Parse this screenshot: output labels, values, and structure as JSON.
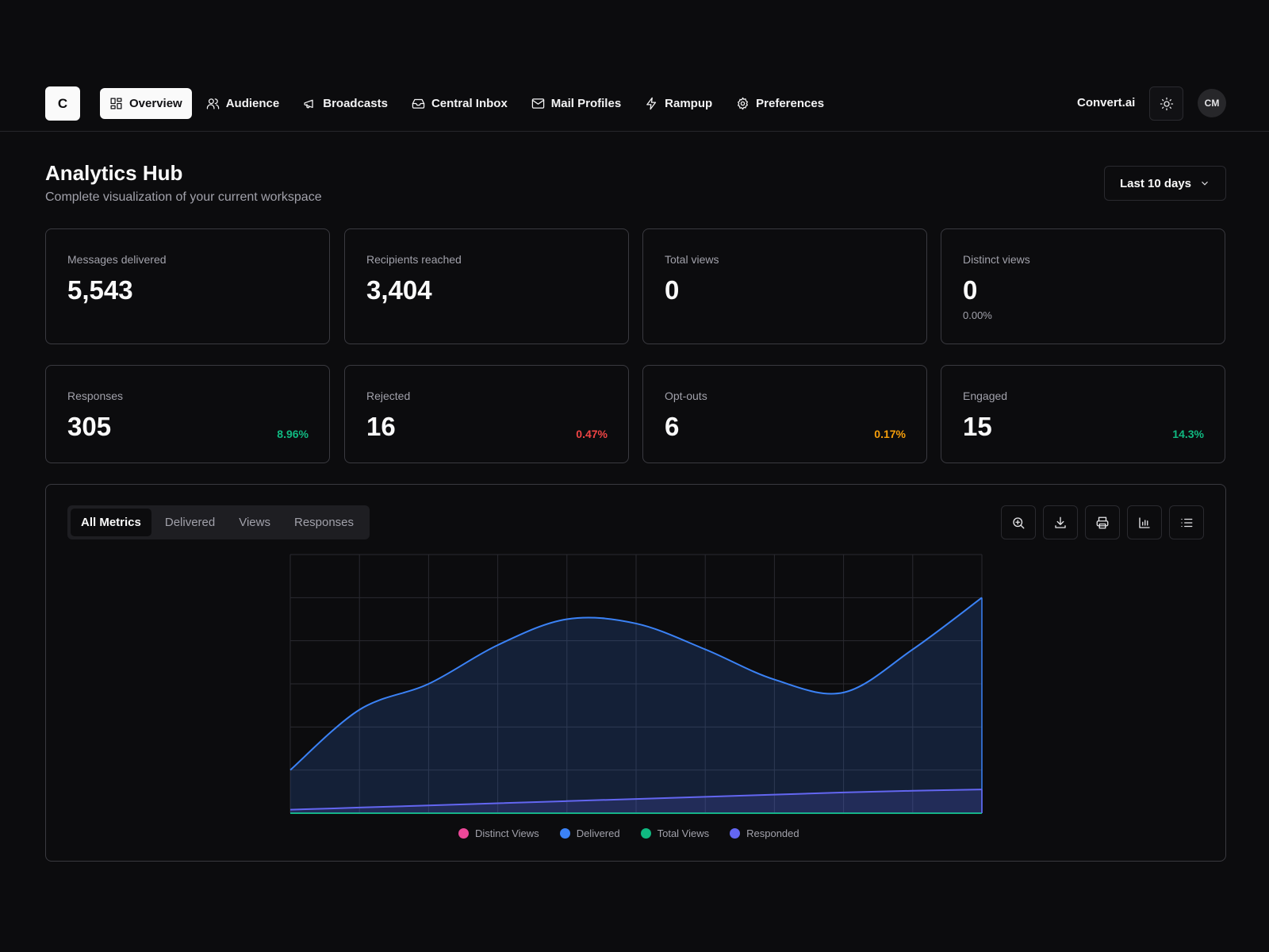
{
  "logo": {
    "letter": "C"
  },
  "nav": {
    "items": [
      {
        "label": "Overview",
        "icon": "grid-icon",
        "active": true
      },
      {
        "label": "Audience",
        "icon": "users-icon",
        "active": false
      },
      {
        "label": "Broadcasts",
        "icon": "megaphone-icon",
        "active": false
      },
      {
        "label": "Central Inbox",
        "icon": "inbox-icon",
        "active": false
      },
      {
        "label": "Mail Profiles",
        "icon": "mail-icon",
        "active": false
      },
      {
        "label": "Rampup",
        "icon": "lightning-icon",
        "active": false
      },
      {
        "label": "Preferences",
        "icon": "gear-icon",
        "active": false
      }
    ]
  },
  "header": {
    "brand": "Convert.ai",
    "theme_icon": "sun-icon",
    "avatar_initials": "CM"
  },
  "page": {
    "title": "Analytics Hub",
    "subtitle": "Complete visualization of your current workspace",
    "range_label": "Last 10 days"
  },
  "stats": [
    {
      "label": "Messages delivered",
      "value": "5,543"
    },
    {
      "label": "Recipients reached",
      "value": "3,404"
    },
    {
      "label": "Total views",
      "value": "0"
    },
    {
      "label": "Distinct views",
      "value": "0",
      "sub": "0.00%"
    },
    {
      "label": "Responses",
      "value": "305",
      "pct": "8.96%",
      "pct_color": "#10b981"
    },
    {
      "label": "Rejected",
      "value": "16",
      "pct": "0.47%",
      "pct_color": "#ef4444"
    },
    {
      "label": "Opt-outs",
      "value": "6",
      "pct": "0.17%",
      "pct_color": "#f59e0b"
    },
    {
      "label": "Engaged",
      "value": "15",
      "pct": "14.3%",
      "pct_color": "#10b981"
    }
  ],
  "chart_panel": {
    "tabs": [
      "All Metrics",
      "Delivered",
      "Views",
      "Responses"
    ],
    "active_tab": "All Metrics",
    "tools": [
      "zoom-in-icon",
      "download-icon",
      "print-icon",
      "bar-chart-icon",
      "list-icon"
    ]
  },
  "chart_data": {
    "type": "area",
    "x": [
      0,
      1,
      2,
      3,
      4,
      5,
      6,
      7,
      8,
      9,
      10
    ],
    "xlim": [
      0,
      10
    ],
    "ylim": [
      0,
      6
    ],
    "grid": true,
    "legend_position": "bottom",
    "series": [
      {
        "name": "Distinct Views",
        "color": "#ec4899",
        "values": [
          0,
          0,
          0,
          0,
          0,
          0,
          0,
          0,
          0,
          0,
          0
        ]
      },
      {
        "name": "Delivered",
        "color": "#3b82f6",
        "values": [
          1.0,
          2.4,
          3.0,
          3.9,
          4.5,
          4.4,
          3.8,
          3.1,
          2.8,
          3.8,
          5.0
        ]
      },
      {
        "name": "Total Views",
        "color": "#10b981",
        "values": [
          0,
          0,
          0,
          0,
          0,
          0,
          0,
          0,
          0,
          0,
          0
        ]
      },
      {
        "name": "Responded",
        "color": "#6366f1",
        "values": [
          0.08,
          0.13,
          0.18,
          0.23,
          0.28,
          0.33,
          0.38,
          0.43,
          0.48,
          0.52,
          0.55
        ]
      }
    ]
  }
}
